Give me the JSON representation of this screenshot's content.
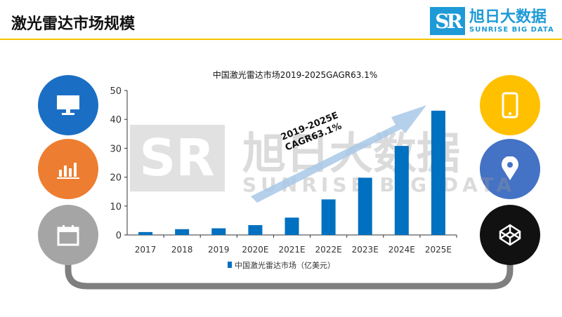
{
  "page": {
    "title": "激光雷达市场规模"
  },
  "logo": {
    "cn": "旭日大数据",
    "en": "SUNRISE BIG DATA",
    "mark": "SR"
  },
  "icons": {
    "left": [
      "monitor-icon",
      "bar-chart-icon",
      "calendar-icon"
    ],
    "right": [
      "phone-icon",
      "location-pin-icon",
      "codepen-cube-icon"
    ]
  },
  "colors": {
    "left": [
      "#1a6fc4",
      "#ed7d31",
      "#a5a5a5"
    ],
    "right": [
      "#ffc000",
      "#4472c4",
      "#111111"
    ],
    "bar": "#0070c0",
    "connector": "#7f7f7f"
  },
  "annotation": {
    "line1": "2019-2025E",
    "line2": "CAGR63.1%"
  },
  "watermark": {
    "cn": "旭日大数据",
    "en": "SUNRISE BIG DATA",
    "mark": "SR"
  },
  "chart_data": {
    "type": "bar",
    "title": "中国激光雷达市场2019-2025GAGR63.1%",
    "categories": [
      "2017",
      "2018",
      "2019",
      "2020E",
      "2021E",
      "2022E",
      "2023E",
      "2024E",
      "2025E"
    ],
    "series": [
      {
        "name": "中国激光雷达市场（亿美元）",
        "values": [
          1.0,
          2.0,
          2.3,
          3.4,
          6.0,
          12.3,
          19.8,
          30.8,
          43.0
        ]
      }
    ],
    "yticks": [
      "0",
      "10",
      "20",
      "30",
      "40",
      "50"
    ],
    "ylim": [
      0,
      50
    ],
    "legend": "bottom"
  }
}
